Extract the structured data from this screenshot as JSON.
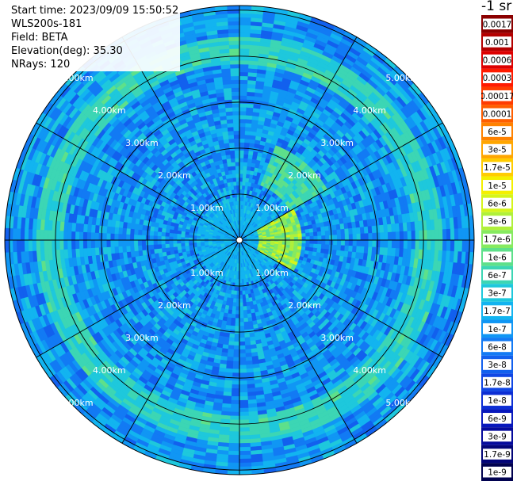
{
  "header": {
    "start_time": "Start time: 2023/09/09 15:50:52",
    "instrument": "WLS200s-181",
    "field": "Field: BETA",
    "elevation": "Elevation(deg): 35.30",
    "nrays": "NRays: 120"
  },
  "colorbar": {
    "unit_label": "-1 sr",
    "levels": [
      {
        "label": "0.0017",
        "color": "#8b0000"
      },
      {
        "label": "0.001",
        "color": "#b40000"
      },
      {
        "label": "0.0006",
        "color": "#dd0000"
      },
      {
        "label": "0.0003",
        "color": "#ff1a00"
      },
      {
        "label": "0.00017",
        "color": "#ff3c00"
      },
      {
        "label": "0.0001",
        "color": "#ff5e00"
      },
      {
        "label": "6e-5",
        "color": "#ff8200"
      },
      {
        "label": "3e-5",
        "color": "#ffa600"
      },
      {
        "label": "1.7e-5",
        "color": "#ffcc00"
      },
      {
        "label": "1e-5",
        "color": "#f4f000"
      },
      {
        "label": "6e-6",
        "color": "#d6f51a"
      },
      {
        "label": "3e-6",
        "color": "#b0f03a"
      },
      {
        "label": "1.7e-6",
        "color": "#86ea60"
      },
      {
        "label": "1e-6",
        "color": "#5ee08a"
      },
      {
        "label": "6e-7",
        "color": "#3cd6b4"
      },
      {
        "label": "3e-7",
        "color": "#1ec8dc"
      },
      {
        "label": "1.7e-7",
        "color": "#12b4f0"
      },
      {
        "label": "1e-7",
        "color": "#1096f4"
      },
      {
        "label": "6e-8",
        "color": "#127af4"
      },
      {
        "label": "3e-8",
        "color": "#1260ee"
      },
      {
        "label": "1.7e-8",
        "color": "#1046e4"
      },
      {
        "label": "1e-8",
        "color": "#0c2ed4"
      },
      {
        "label": "6e-9",
        "color": "#0818bc"
      },
      {
        "label": "3e-9",
        "color": "#050a9c"
      },
      {
        "label": "1.7e-9",
        "color": "#030578"
      },
      {
        "label": "1e-9",
        "color": "#010250"
      }
    ]
  },
  "chart_data": {
    "type": "heatmap",
    "projection": "polar (PPI scan)",
    "field": "BETA",
    "elevation_deg": 35.3,
    "nrays": 120,
    "range_rings_km": [
      1.0,
      2.0,
      3.0,
      4.0,
      5.0
    ],
    "ring_labels": [
      "1.00km",
      "2.00km",
      "3.00km",
      "4.00km",
      "5.00km"
    ],
    "max_range_km": 5.1,
    "spoke_azimuths_deg": [
      0,
      30,
      60,
      90,
      120,
      150,
      180,
      210,
      240,
      270,
      300,
      330
    ],
    "ring_label_azimuths_deg": [
      315,
      45,
      135,
      225
    ],
    "value_range": [
      1e-09,
      0.0017
    ],
    "log_scale": true,
    "dominant_level": "3e-7 to 1e-7",
    "notable_features": [
      {
        "description": "higher backscatter (1e-6 to 1e-5) east of center",
        "azimuth_range_deg": [
          60,
          120
        ],
        "range_km": [
          0.4,
          1.2
        ]
      },
      {
        "description": "outer ring band near 3e-7",
        "range_km": [
          3.8,
          4.4
        ]
      }
    ]
  }
}
